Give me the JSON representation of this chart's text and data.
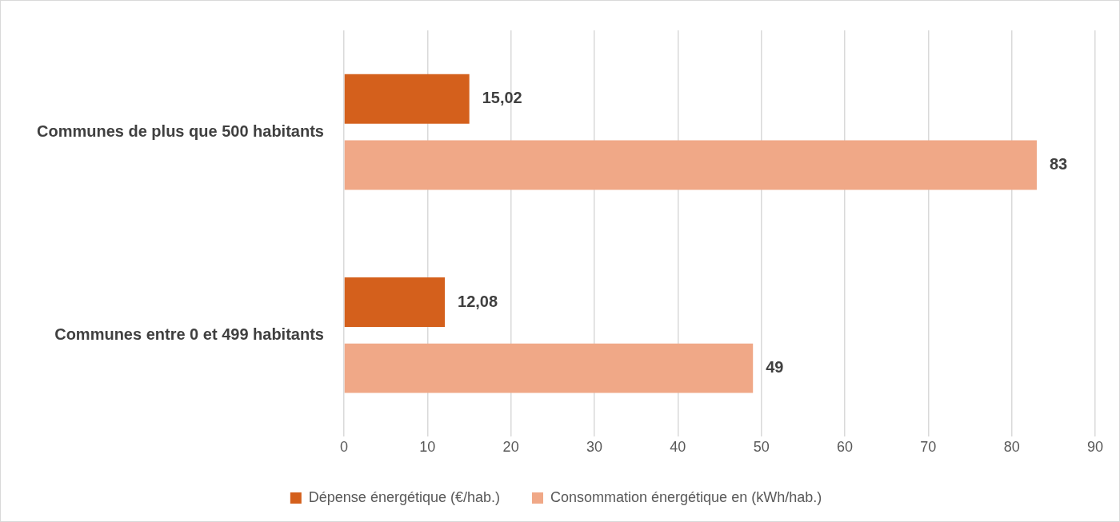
{
  "chart_data": {
    "type": "bar",
    "orientation": "horizontal",
    "categories": [
      "Communes de plus que 500 habitants",
      "Communes entre 0 et 499 habitants"
    ],
    "series": [
      {
        "name": "Dépense énergétique (€/hab.)",
        "color": "#d4601c",
        "values": [
          15.02,
          12.08
        ],
        "value_labels": [
          "15,02",
          "12,08"
        ]
      },
      {
        "name": "Consommation énergétique en (kWh/hab.)",
        "color": "#f0a887",
        "values": [
          83,
          49
        ],
        "value_labels": [
          "83",
          "49"
        ]
      }
    ],
    "xlim": [
      0,
      90
    ],
    "xticks": [
      0,
      10,
      20,
      30,
      40,
      50,
      60,
      70,
      80,
      90
    ],
    "grid": "x",
    "legend": "bottom"
  }
}
